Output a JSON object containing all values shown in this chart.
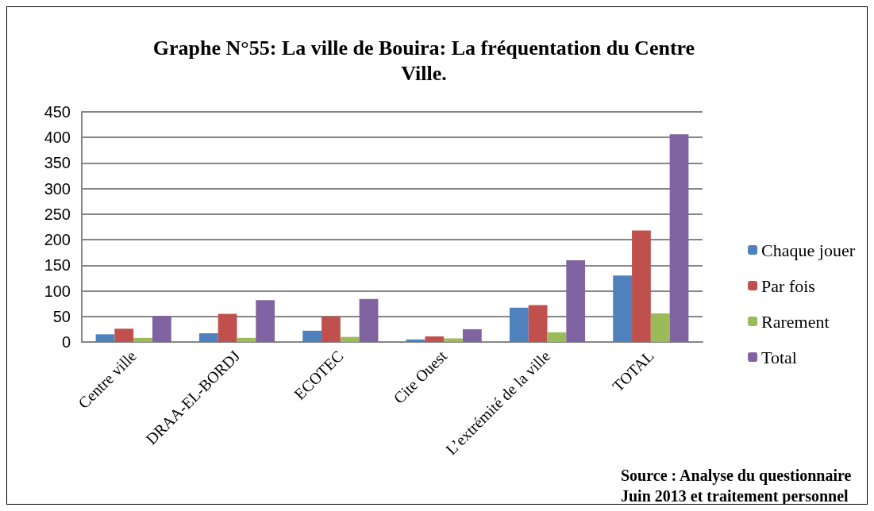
{
  "chart_data": {
    "type": "bar",
    "title": "Graphe N°55: La ville de Bouira: La fréquentation du Centre Ville.",
    "categories": [
      "Centre ville",
      "DRAA-EL-BORDJ",
      "ECOTEC",
      "Cite Ouest",
      "L’extrémité de la ville",
      "TOTAL"
    ],
    "series": [
      {
        "name": "Chaque jouer",
        "color": "#4f81bd",
        "values": [
          15,
          17,
          22,
          5,
          67,
          130
        ]
      },
      {
        "name": "Par fois",
        "color": "#c0504d",
        "values": [
          26,
          55,
          50,
          11,
          72,
          218
        ]
      },
      {
        "name": "Rarement",
        "color": "#9bbb59",
        "values": [
          8,
          8,
          10,
          7,
          19,
          56
        ]
      },
      {
        "name": "Total",
        "color": "#8064a2",
        "values": [
          51,
          82,
          84,
          25,
          160,
          406
        ]
      }
    ],
    "ylim": [
      0,
      450
    ],
    "yticks": [
      0,
      50,
      100,
      150,
      200,
      250,
      300,
      350,
      400,
      450
    ],
    "grid": "y",
    "legend": "right",
    "annotations": [
      "Source : Analyse du questionnaire Juin 2013 et traitement personnel"
    ]
  }
}
